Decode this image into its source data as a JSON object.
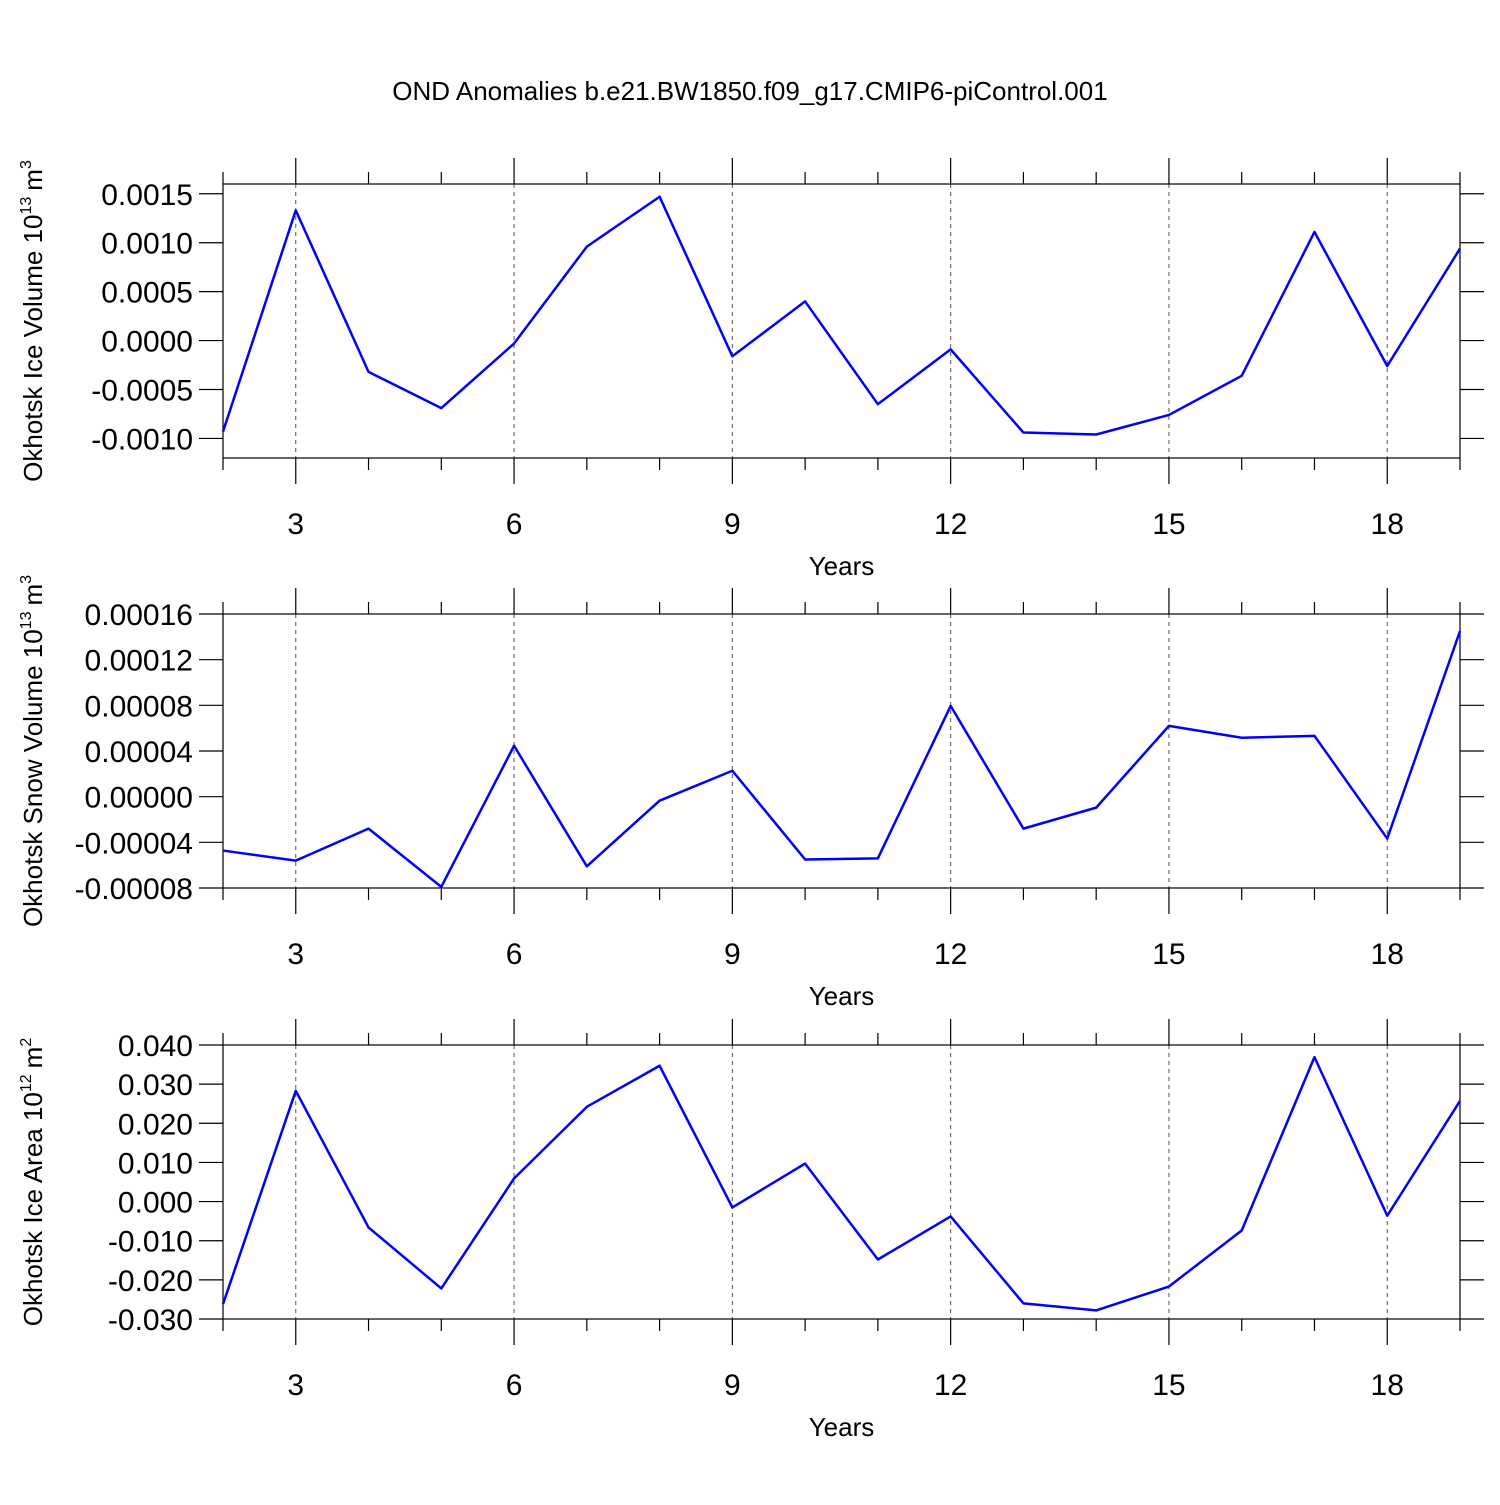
{
  "title": "OND Anomalies b.e21.BW1850.f09_g17.CMIP6-piControl.001",
  "chart_data": [
    {
      "type": "line",
      "ylabel": {
        "text": "Okhotsk Ice Volume 10",
        "sup": "13",
        "unit": "m",
        "unit_sup": "3"
      },
      "xlabel": "Years",
      "x": [
        2,
        3,
        4,
        5,
        6,
        7,
        8,
        9,
        10,
        11,
        12,
        13,
        14,
        15,
        16,
        17,
        18,
        19
      ],
      "values": [
        -0.00093,
        0.00133,
        -0.00032,
        -0.00069,
        -3e-05,
        0.00096,
        0.00147,
        -0.00016,
        0.0004,
        -0.00065,
        -9e-05,
        -0.00094,
        -0.00096,
        -0.00076,
        -0.00036,
        0.00111,
        -0.00026,
        0.00094
      ],
      "color": "#0000ff",
      "xlim": [
        2,
        19
      ],
      "xticks": [
        3,
        6,
        9,
        12,
        15,
        18
      ],
      "xminor": [
        2,
        4,
        5,
        7,
        8,
        10,
        11,
        13,
        14,
        16,
        17,
        19
      ],
      "ylim": [
        -0.0012,
        0.0016
      ],
      "yticks": [
        {
          "value": -0.001,
          "label": "-0.0010"
        },
        -0.0005,
        {
          "value": 0,
          "label": "0.0000"
        },
        0.0005,
        {
          "value": 0.001,
          "label": "0.0010"
        },
        0.0015
      ],
      "xgrid": true
    },
    {
      "type": "line",
      "ylabel": {
        "text": "Okhotsk Snow Volume 10",
        "sup": "13",
        "unit": "m",
        "unit_sup": "3"
      },
      "xlabel": "Years",
      "x": [
        2,
        3,
        4,
        5,
        6,
        7,
        8,
        9,
        10,
        11,
        12,
        13,
        14,
        15,
        16,
        17,
        18,
        19
      ],
      "values": [
        -4.72e-05,
        -5.6e-05,
        -2.8e-05,
        -7.9e-05,
        4.46e-05,
        -6.1e-05,
        -3.5e-06,
        2.27e-05,
        -5.5e-05,
        -5.4e-05,
        7.95e-05,
        -2.8e-05,
        -9.6e-06,
        6.2e-05,
        5.16e-05,
        5.33e-05,
        -3.67e-05,
        0.000145
      ],
      "color": "#0000ff",
      "xlim": [
        2,
        19
      ],
      "xticks": [
        3,
        6,
        9,
        12,
        15,
        18
      ],
      "xminor": [
        2,
        4,
        5,
        7,
        8,
        10,
        11,
        13,
        14,
        16,
        17,
        19
      ],
      "ylim": [
        -8e-05,
        0.00016
      ],
      "yticks": [
        -8e-05,
        -4e-05,
        {
          "value": 0,
          "label": "0.00000"
        },
        4e-05,
        8e-05,
        0.00012,
        0.00016
      ],
      "xgrid": true
    },
    {
      "type": "line",
      "ylabel": {
        "text": "Okhotsk Ice Area 10",
        "sup": "12",
        "unit": "m",
        "unit_sup": "2"
      },
      "xlabel": "Years",
      "x": [
        2,
        3,
        4,
        5,
        6,
        7,
        8,
        9,
        10,
        11,
        12,
        13,
        14,
        15,
        16,
        17,
        18,
        19
      ],
      "values": [
        -0.0262,
        0.0283,
        -0.0066,
        -0.0222,
        0.0059,
        0.0242,
        0.0347,
        -0.0015,
        0.0097,
        -0.0148,
        -0.0038,
        -0.026,
        -0.0278,
        -0.0217,
        -0.0074,
        0.0369,
        -0.0036,
        0.0257
      ],
      "color": "#0000ff",
      "xlim": [
        2,
        19
      ],
      "xticks": [
        3,
        6,
        9,
        12,
        15,
        18
      ],
      "xminor": [
        2,
        4,
        5,
        7,
        8,
        10,
        11,
        13,
        14,
        16,
        17,
        19
      ],
      "ylim": [
        -0.03,
        0.04
      ],
      "yticks": [
        {
          "value": -0.03,
          "label": "-0.030"
        },
        {
          "value": -0.02,
          "label": "-0.020"
        },
        {
          "value": -0.01,
          "label": "-0.010"
        },
        {
          "value": 0,
          "label": "0.000"
        },
        {
          "value": 0.01,
          "label": "0.010"
        },
        {
          "value": 0.02,
          "label": "0.020"
        },
        {
          "value": 0.03,
          "label": "0.030"
        },
        {
          "value": 0.04,
          "label": "0.040"
        }
      ],
      "xgrid": true
    }
  ]
}
